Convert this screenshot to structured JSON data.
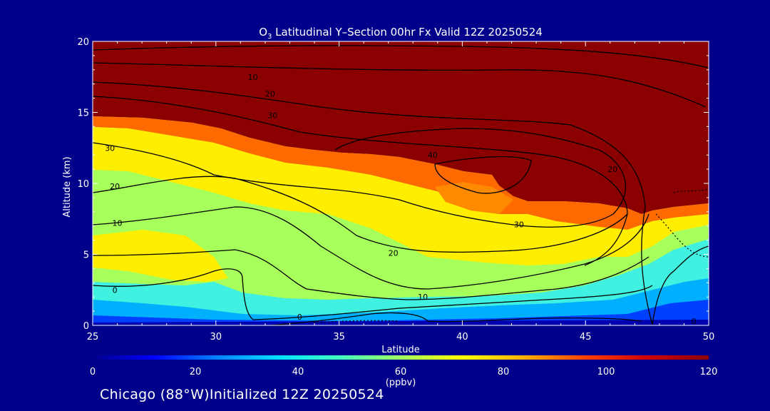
{
  "chart_data": {
    "type": "heatmap",
    "title": {
      "species": "O",
      "species_sub": "3",
      "rest": " Latitudinal Y–Section 00hr  Fx Valid 12Z 20250524"
    },
    "xlabel": "Latitude",
    "ylabel": "Altitude (km)",
    "xlim": [
      25,
      50
    ],
    "ylim": [
      0,
      20
    ],
    "x_ticks": [
      "25",
      "30",
      "35",
      "40",
      "45",
      "50"
    ],
    "y_ticks": [
      "0",
      "5",
      "10",
      "15",
      "20"
    ],
    "colorbar": {
      "ticks": [
        "0",
        "20",
        "40",
        "60",
        "80",
        "100",
        "120"
      ],
      "range": [
        0,
        120
      ],
      "units": "(ppbv)",
      "colors": [
        "#00008b",
        "#0000ff",
        "#0080ff",
        "#00e0ff",
        "#40ffc0",
        "#a0ff60",
        "#ffff00",
        "#ffb000",
        "#ff4000",
        "#d00000",
        "#8b0000"
      ]
    },
    "contour_labels": [
      {
        "text": "0",
        "lat": 25.9,
        "alt": 2.5
      },
      {
        "text": "0",
        "lat": 33.4,
        "alt": 0.6
      },
      {
        "text": "0",
        "lat": 49.4,
        "alt": 0.3
      },
      {
        "text": "10",
        "lat": 26.0,
        "alt": 7.2
      },
      {
        "text": "10",
        "lat": 31.5,
        "alt": 17.5
      },
      {
        "text": "10",
        "lat": 38.4,
        "alt": 2.0
      },
      {
        "text": "20",
        "lat": 25.9,
        "alt": 9.8
      },
      {
        "text": "20",
        "lat": 32.2,
        "alt": 16.3
      },
      {
        "text": "20",
        "lat": 37.2,
        "alt": 5.1
      },
      {
        "text": "20",
        "lat": 46.1,
        "alt": 11.0
      },
      {
        "text": "30",
        "lat": 25.7,
        "alt": 12.5
      },
      {
        "text": "30",
        "lat": 32.3,
        "alt": 14.8
      },
      {
        "text": "30",
        "lat": 42.3,
        "alt": 7.1
      },
      {
        "text": "40",
        "lat": 38.8,
        "alt": 12.0
      }
    ]
  },
  "footer": "Chicago (88°W)Initialized 12Z 20250524"
}
